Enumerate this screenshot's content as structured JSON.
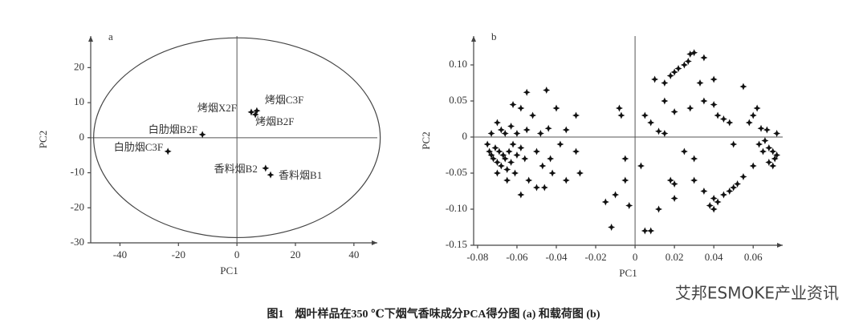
{
  "chart_data": [
    {
      "type": "scatter",
      "panel": "a",
      "xlabel": "PC1",
      "ylabel": "PC2",
      "xlim": [
        -50,
        48
      ],
      "ylim": [
        -30,
        29
      ],
      "xticks": [
        -40,
        -20,
        0,
        20,
        40
      ],
      "yticks": [
        -30,
        -20,
        -10,
        0,
        10,
        20
      ],
      "ellipse_center": [
        0,
        0
      ],
      "ellipse_radii": [
        49,
        28.5
      ],
      "color": "#111",
      "x": [
        4.9,
        6.8,
        6.3,
        -11.8,
        -23.6,
        9.8,
        11.5
      ],
      "values": [
        7.3,
        7.7,
        6.6,
        0.9,
        -3.9,
        -8.7,
        -10.6
      ],
      "point_labels": [
        "烤烟X2F",
        "烤烟C3F",
        "烤烟B2F",
        "白肋烟B2F",
        "白肋烟C3F",
        "香料烟B2",
        "香料烟B1"
      ]
    },
    {
      "type": "scatter",
      "panel": "b",
      "xlabel": "PC1",
      "ylabel": "PC2",
      "xlim": [
        -0.082,
        0.075
      ],
      "ylim": [
        -0.15,
        0.14
      ],
      "xticks": [
        -0.08,
        -0.06,
        -0.04,
        -0.02,
        0,
        0.02,
        0.04,
        0.06
      ],
      "yticks": [
        {
          "value": 0.1,
          "label": "0.10"
        },
        0.05,
        0,
        -0.05,
        {
          "value": -0.1,
          "label": "-0.10"
        },
        -0.15
      ],
      "color": "#111",
      "x": [
        -0.075,
        -0.074,
        -0.073,
        -0.072,
        -0.071,
        -0.07,
        -0.069,
        -0.068,
        -0.067,
        -0.066,
        -0.065,
        -0.064,
        -0.063,
        -0.062,
        -0.061,
        -0.06,
        -0.073,
        -0.07,
        -0.068,
        -0.066,
        -0.063,
        -0.06,
        -0.058,
        -0.056,
        -0.055,
        -0.054,
        -0.052,
        -0.05,
        -0.048,
        -0.047,
        -0.046,
        -0.044,
        -0.043,
        -0.042,
        -0.04,
        -0.035,
        -0.038,
        -0.03,
        -0.03,
        -0.028,
        -0.058,
        -0.055,
        -0.045,
        -0.062,
        -0.07,
        -0.065,
        -0.058,
        -0.05,
        -0.035,
        -0.015,
        -0.01,
        -0.005,
        -0.012,
        -0.003,
        0.005,
        0.008,
        0.012,
        0.02,
        0.018,
        -0.005,
        -0.008,
        -0.007,
        0.003,
        0.005,
        0.008,
        0.012,
        0.015,
        0.02,
        0.025,
        0.03,
        0.028,
        0.035,
        0.04,
        0.042,
        0.045,
        0.048,
        0.05,
        0.055,
        0.058,
        0.06,
        0.062,
        0.064,
        0.066,
        0.068,
        0.07,
        0.071,
        0.072,
        0.07,
        0.068,
        0.065,
        0.063,
        0.067,
        0.072,
        0.06,
        0.055,
        0.05,
        0.045,
        0.042,
        0.04,
        0.038,
        0.04,
        0.048,
        0.052,
        0.035,
        0.02,
        0.03,
        0.01,
        0.015,
        0.018,
        0.02,
        0.022,
        0.025,
        0.027,
        0.028,
        0.03,
        0.035,
        0.015,
        0.033,
        0.04
      ],
      "values": [
        -0.01,
        -0.02,
        -0.025,
        -0.03,
        -0.015,
        -0.035,
        -0.02,
        -0.04,
        -0.025,
        -0.03,
        -0.045,
        -0.02,
        -0.035,
        -0.01,
        -0.05,
        -0.025,
        0.005,
        0.02,
        0.01,
        0.005,
        0.015,
        0.005,
        -0.015,
        -0.03,
        0.01,
        -0.06,
        0.03,
        -0.02,
        0.005,
        -0.04,
        -0.07,
        0.012,
        -0.03,
        -0.05,
        0.04,
        0.01,
        -0.01,
        0.03,
        -0.02,
        -0.05,
        0.04,
        0.062,
        0.065,
        0.045,
        -0.05,
        -0.06,
        -0.08,
        -0.07,
        -0.06,
        -0.09,
        -0.08,
        -0.06,
        -0.125,
        -0.095,
        -0.13,
        -0.13,
        -0.1,
        -0.085,
        -0.06,
        -0.03,
        0.04,
        0.03,
        -0.04,
        0.03,
        0.02,
        0.008,
        0.005,
        0.035,
        -0.02,
        -0.06,
        0.04,
        0.05,
        0.045,
        0.03,
        0.025,
        0.02,
        -0.01,
        0.07,
        0.02,
        0.03,
        0.04,
        0.012,
        -0.005,
        -0.015,
        -0.02,
        -0.03,
        0.005,
        -0.04,
        -0.035,
        -0.02,
        -0.01,
        0.01,
        -0.025,
        -0.04,
        -0.055,
        -0.07,
        -0.08,
        -0.09,
        -0.1,
        -0.095,
        -0.085,
        -0.075,
        -0.065,
        -0.075,
        -0.065,
        -0.03,
        0.08,
        0.075,
        0.085,
        0.09,
        0.095,
        0.1,
        0.105,
        0.115,
        0.117,
        0.11,
        0.05,
        0.075,
        0.08
      ]
    }
  ],
  "caption": "图1　烟叶样品在350 ℃下烟气香味成分PCA得分图 (a) 和载荷图 (b)",
  "watermark": "艾邦ESMOKE产业资讯"
}
